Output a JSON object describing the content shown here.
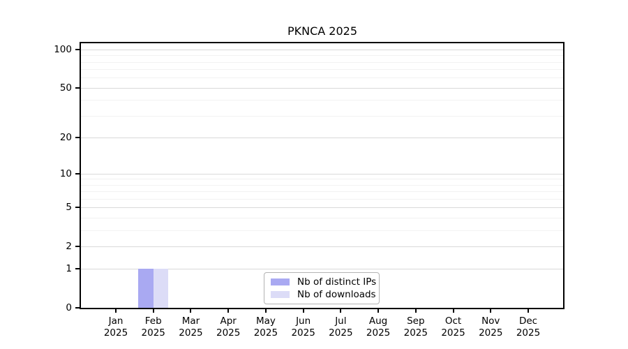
{
  "chart_data": {
    "type": "bar",
    "title": "PKNCA 2025",
    "categories": [
      "Jan 2025",
      "Feb 2025",
      "Mar 2025",
      "Apr 2025",
      "May 2025",
      "Jun 2025",
      "Jul 2025",
      "Aug 2025",
      "Sep 2025",
      "Oct 2025",
      "Nov 2025",
      "Dec 2025"
    ],
    "series": [
      {
        "name": "Nb of distinct IPs",
        "color": "#a9a9f2",
        "values": [
          0,
          1,
          0,
          0,
          0,
          0,
          0,
          0,
          0,
          0,
          0,
          0
        ]
      },
      {
        "name": "Nb of downloads",
        "color": "#dcdcf7",
        "values": [
          0,
          1,
          0,
          0,
          0,
          0,
          0,
          0,
          0,
          0,
          0,
          0
        ]
      }
    ],
    "xlabel": "",
    "ylabel": "",
    "y_axis": {
      "scale": "log1p",
      "major_ticks": [
        0,
        1,
        2,
        5,
        10,
        20,
        50,
        100
      ],
      "minor_gridlines": [
        3,
        4,
        6,
        7,
        8,
        9,
        30,
        40,
        60,
        70,
        80,
        90
      ],
      "max_tick": 100
    },
    "grid": "horizontal-only",
    "legend_position": "bottom-center"
  },
  "colors": {
    "background": "#ffffff",
    "axis_line": "#000000",
    "text": "#000000",
    "major_grid": "#d9d9d9",
    "minor_grid": "#f2f2f2",
    "legend_border": "#b3b3b3",
    "bar_distinct_ips": "#a9a9f2",
    "bar_downloads": "#dcdcf7"
  }
}
